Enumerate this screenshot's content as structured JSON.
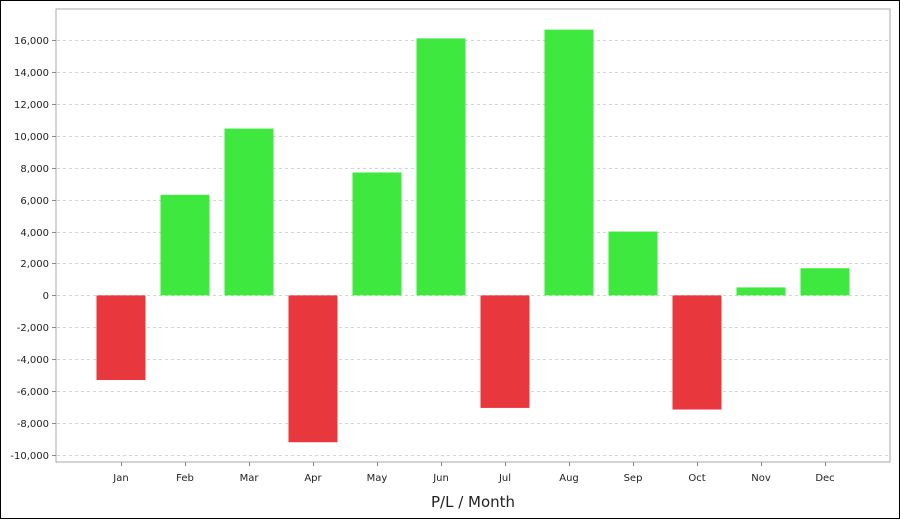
{
  "chart_data": {
    "type": "bar",
    "categories": [
      "Jan",
      "Feb",
      "Mar",
      "Apr",
      "May",
      "Jun",
      "Jul",
      "Aug",
      "Sep",
      "Oct",
      "Nov",
      "Dec"
    ],
    "values": [
      -5300,
      6300,
      10450,
      -9200,
      7700,
      16100,
      -7050,
      16650,
      4000,
      -7150,
      500,
      1700
    ],
    "title": "",
    "xlabel": "P/L / Month",
    "ylabel": "",
    "ylim": [
      -10000,
      16000
    ],
    "yticks": [
      -10000,
      -8000,
      -6000,
      -4000,
      -2000,
      0,
      2000,
      4000,
      6000,
      8000,
      10000,
      12000,
      14000,
      16000
    ],
    "ytick_labels": [
      "-10,000",
      "-8,000",
      "-6,000",
      "-4,000",
      "-2,000",
      "0",
      "2,000",
      "4,000",
      "6,000",
      "8,000",
      "10,000",
      "12,000",
      "14,000",
      "16,000"
    ],
    "grid": true,
    "colors": {
      "positive": "#3ee83e",
      "negative": "#e8373d",
      "grid": "#d4d4d4",
      "axis": "#888888"
    }
  }
}
